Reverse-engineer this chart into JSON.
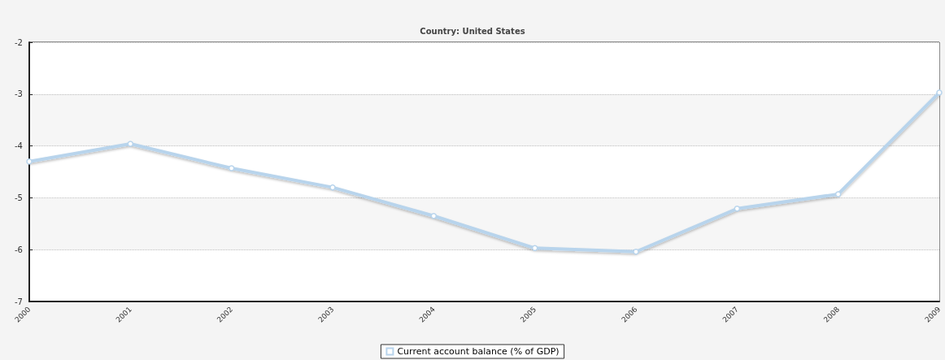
{
  "chart_data": {
    "type": "line",
    "title": "Country: United States",
    "categories": [
      "2000",
      "2001",
      "2002",
      "2003",
      "2004",
      "2005",
      "2006",
      "2007",
      "2008",
      "2009"
    ],
    "series": [
      {
        "name": "Current account balance (% of GDP)",
        "color": "#b8d4ec",
        "values": [
          -4.3,
          -3.96,
          -4.43,
          -4.8,
          -5.35,
          -5.97,
          -6.04,
          -5.21,
          -4.93,
          -2.97
        ]
      }
    ],
    "ylim": [
      -7,
      -2
    ],
    "yticks": [
      -7,
      -6,
      -5,
      -4,
      -3,
      -2
    ],
    "grid": "y",
    "legend": "bottom",
    "marker": "circle",
    "line_style": "solid"
  }
}
